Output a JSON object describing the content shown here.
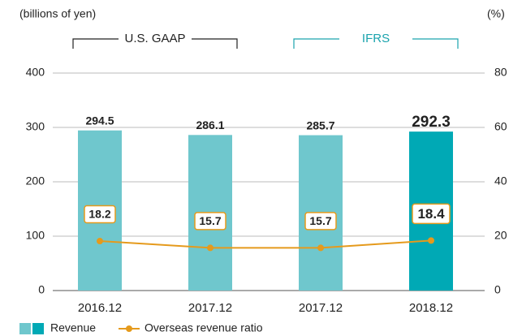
{
  "chart_data": {
    "type": "bar_line",
    "y_label": "(billions of yen)",
    "y2_label": "(%)",
    "groups": [
      {
        "label": "U.S. GAAP",
        "from": 0,
        "to": 1,
        "color": "#222222"
      },
      {
        "label": "IFRS",
        "from": 2,
        "to": 3,
        "color": "#1aa3ad"
      }
    ],
    "categories": [
      "2016.12",
      "2017.12",
      "2017.12",
      "2018.12"
    ],
    "series": [
      {
        "name": "Revenue",
        "colors": [
          "#6fc7cd",
          "#6fc7cd",
          "#6fc7cd",
          "#00a9b5"
        ],
        "values": [
          294.5,
          286.1,
          285.7,
          292.3
        ],
        "axis": "y"
      },
      {
        "name": "Overseas revenue ratio",
        "color": "#e59a1c",
        "values": [
          18.2,
          15.7,
          15.7,
          18.4
        ],
        "axis": "y2"
      }
    ],
    "emphasis_index": 3,
    "ylim": [
      0,
      400
    ],
    "yticks": [
      0,
      100,
      200,
      300,
      400
    ],
    "y2lim": [
      0,
      80
    ],
    "y2ticks": [
      0,
      20,
      40,
      60,
      80
    ],
    "grid": true
  }
}
